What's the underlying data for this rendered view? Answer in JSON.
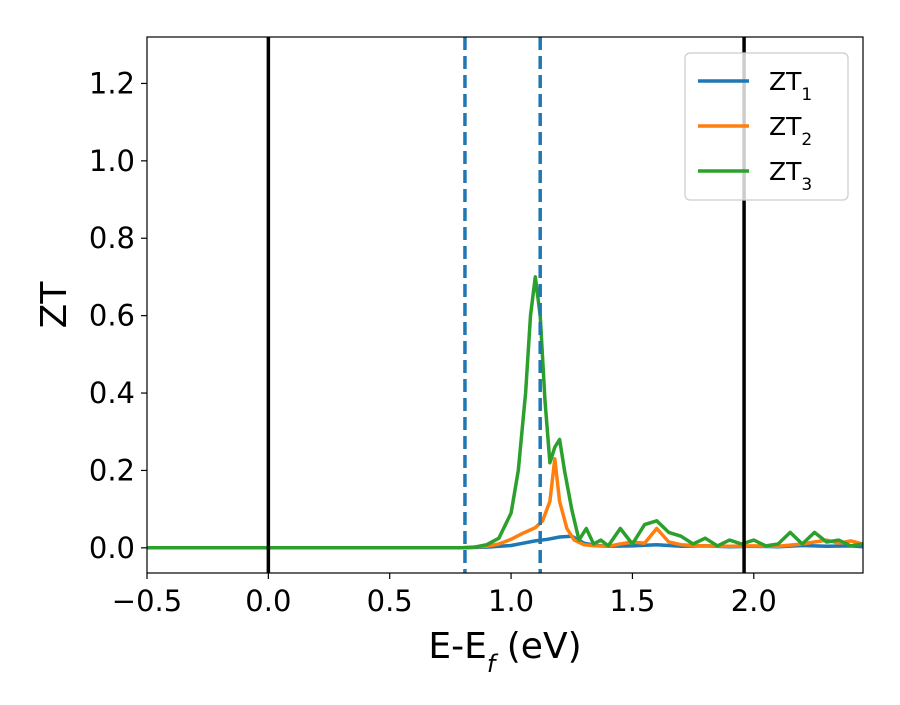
{
  "chart_data": {
    "type": "line",
    "title": "",
    "xlabel_main": "E-E",
    "xlabel_sub": "f",
    "xlabel_unit": " (eV)",
    "ylabel": "ZT",
    "xlim": [
      -0.5,
      2.45
    ],
    "ylim": [
      -0.065,
      1.32
    ],
    "x_ticks": [
      -0.5,
      0.0,
      0.5,
      1.0,
      1.5,
      2.0
    ],
    "x_tick_labels": [
      "−0.5",
      "0.0",
      "0.5",
      "1.0",
      "1.5",
      "2.0"
    ],
    "y_ticks": [
      0.0,
      0.2,
      0.4,
      0.6,
      0.8,
      1.0,
      1.2
    ],
    "y_tick_labels": [
      "0.0",
      "0.2",
      "0.4",
      "0.6",
      "0.8",
      "1.0",
      "1.2"
    ],
    "grid": false,
    "legend_position": "top-right",
    "vertical_lines": [
      {
        "x": 0.0,
        "style": "solid",
        "color": "#000000"
      },
      {
        "x": 1.96,
        "style": "solid",
        "color": "#000000"
      },
      {
        "x": 0.81,
        "style": "dashed",
        "color": "#1f77b4"
      },
      {
        "x": 1.12,
        "style": "dashed",
        "color": "#1f77b4"
      }
    ],
    "series": [
      {
        "name": "ZT",
        "name_sub": "1",
        "color": "#1f77b4",
        "x": [
          -0.5,
          0.8,
          0.9,
          1.0,
          1.05,
          1.1,
          1.15,
          1.2,
          1.25,
          1.3,
          1.35,
          1.4,
          1.5,
          1.6,
          1.7,
          1.8,
          1.9,
          2.0,
          2.1,
          2.2,
          2.3,
          2.4,
          2.45
        ],
        "y": [
          0.0,
          0.0,
          0.002,
          0.006,
          0.012,
          0.018,
          0.022,
          0.028,
          0.03,
          0.012,
          0.006,
          0.004,
          0.005,
          0.008,
          0.004,
          0.005,
          0.003,
          0.004,
          0.003,
          0.006,
          0.004,
          0.005,
          0.003
        ]
      },
      {
        "name": "ZT",
        "name_sub": "2",
        "color": "#ff7f0e",
        "x": [
          -0.5,
          0.8,
          0.9,
          0.95,
          1.0,
          1.05,
          1.1,
          1.13,
          1.16,
          1.18,
          1.2,
          1.23,
          1.26,
          1.3,
          1.35,
          1.4,
          1.45,
          1.5,
          1.55,
          1.6,
          1.65,
          1.7,
          1.75,
          1.8,
          1.9,
          2.0,
          2.1,
          2.2,
          2.25,
          2.3,
          2.35,
          2.4,
          2.45
        ],
        "y": [
          0.0,
          0.0,
          0.004,
          0.01,
          0.022,
          0.038,
          0.052,
          0.07,
          0.12,
          0.23,
          0.12,
          0.05,
          0.02,
          0.008,
          0.005,
          0.004,
          0.01,
          0.015,
          0.012,
          0.05,
          0.015,
          0.008,
          0.006,
          0.005,
          0.004,
          0.005,
          0.004,
          0.01,
          0.015,
          0.02,
          0.012,
          0.018,
          0.01
        ]
      },
      {
        "name": "ZT",
        "name_sub": "3",
        "color": "#2ca02c",
        "x": [
          -0.5,
          0.8,
          0.85,
          0.9,
          0.95,
          1.0,
          1.03,
          1.06,
          1.08,
          1.1,
          1.12,
          1.14,
          1.16,
          1.18,
          1.2,
          1.22,
          1.25,
          1.28,
          1.31,
          1.34,
          1.37,
          1.4,
          1.45,
          1.5,
          1.55,
          1.6,
          1.65,
          1.7,
          1.75,
          1.8,
          1.85,
          1.9,
          1.95,
          2.0,
          2.05,
          2.1,
          2.15,
          2.2,
          2.25,
          2.3,
          2.35,
          2.4,
          2.45
        ],
        "y": [
          0.0,
          0.0,
          0.002,
          0.008,
          0.025,
          0.09,
          0.2,
          0.4,
          0.6,
          0.7,
          0.6,
          0.38,
          0.22,
          0.26,
          0.28,
          0.2,
          0.1,
          0.02,
          0.05,
          0.01,
          0.02,
          0.005,
          0.05,
          0.01,
          0.06,
          0.07,
          0.04,
          0.03,
          0.01,
          0.025,
          0.005,
          0.02,
          0.01,
          0.02,
          0.005,
          0.01,
          0.04,
          0.01,
          0.04,
          0.015,
          0.02,
          0.005,
          0.01
        ]
      }
    ]
  }
}
